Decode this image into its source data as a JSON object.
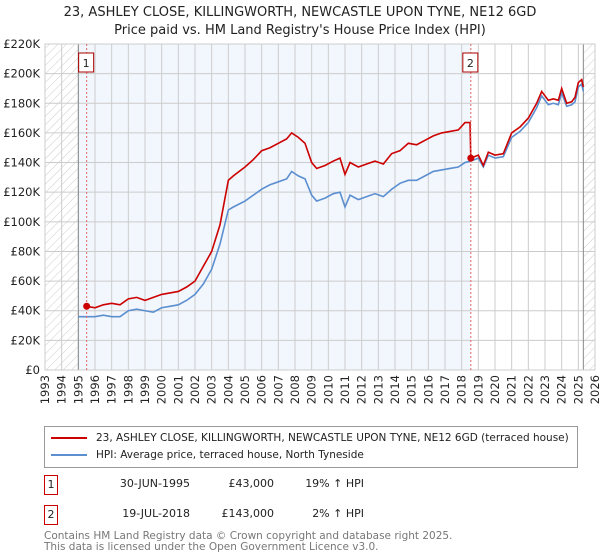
{
  "title": [
    "23, ASHLEY CLOSE, KILLINGWORTH, NEWCASTLE UPON TYNE, NE12 6GD",
    "Price paid vs. HM Land Registry's House Price Index (HPI)"
  ],
  "chart_data": {
    "type": "line",
    "xlim": [
      1993,
      2026
    ],
    "ylim": [
      0,
      220000
    ],
    "yticks": [
      0,
      20000,
      40000,
      60000,
      80000,
      100000,
      120000,
      140000,
      160000,
      180000,
      200000,
      220000
    ],
    "ytick_labels": [
      "£0",
      "£20K",
      "£40K",
      "£60K",
      "£80K",
      "£100K",
      "£120K",
      "£140K",
      "£160K",
      "£180K",
      "£200K",
      "£220K"
    ],
    "xtick_labels": [
      "1993",
      "1994",
      "1995",
      "1996",
      "1997",
      "1998",
      "1999",
      "2000",
      "2001",
      "2002",
      "2003",
      "2004",
      "2005",
      "2006",
      "2007",
      "2008",
      "2009",
      "2010",
      "2011",
      "2012",
      "2013",
      "2014",
      "2015",
      "2016",
      "2017",
      "2018",
      "2019",
      "2020",
      "2021",
      "2022",
      "2023",
      "2024",
      "2025",
      "2026"
    ],
    "grid": true,
    "shaded_period": [
      1995,
      2018.55
    ],
    "hatched_before": 1995,
    "hatched_after": 2025.3,
    "series": [
      {
        "name": "23, ASHLEY CLOSE, KILLINGWORTH, NEWCASTLE UPON TYNE, NE12 6GD (terraced house)",
        "color": "#cc0000",
        "x": [
          1995.5,
          1996,
          1996.5,
          1997,
          1997.5,
          1998,
          1998.5,
          1999,
          1999.5,
          2000,
          2000.5,
          2001,
          2001.5,
          2002,
          2002.5,
          2003,
          2003.5,
          2004,
          2004.3,
          2005,
          2005.5,
          2006,
          2006.5,
          2007,
          2007.5,
          2007.8,
          2008.2,
          2008.6,
          2009,
          2009.3,
          2009.8,
          2010.3,
          2010.7,
          2011,
          2011.3,
          2011.8,
          2012.3,
          2012.8,
          2013.3,
          2013.8,
          2014.3,
          2014.8,
          2015.3,
          2015.8,
          2016.3,
          2016.8,
          2017.3,
          2017.8,
          2018.2,
          2018.5,
          2018.55,
          2019,
          2019.3,
          2019.6,
          2020,
          2020.5,
          2021,
          2021.5,
          2022,
          2022.5,
          2022.8,
          2023.2,
          2023.5,
          2023.8,
          2024,
          2024.3,
          2024.6,
          2024.8,
          2025,
          2025.2,
          2025.3
        ],
        "y": [
          43000,
          42000,
          44000,
          45000,
          44000,
          48000,
          49000,
          47000,
          49000,
          51000,
          52000,
          53000,
          56000,
          60000,
          70000,
          80000,
          98000,
          128000,
          131000,
          137000,
          142000,
          148000,
          150000,
          153000,
          156000,
          160000,
          157000,
          153000,
          140000,
          136000,
          138000,
          141000,
          143000,
          132000,
          140000,
          137000,
          139000,
          141000,
          139000,
          146000,
          148000,
          153000,
          152000,
          155000,
          158000,
          160000,
          161000,
          162000,
          167000,
          167000,
          143000,
          145000,
          138000,
          147000,
          145000,
          146000,
          160000,
          164000,
          170000,
          180000,
          188000,
          182000,
          183000,
          182000,
          190000,
          180000,
          181000,
          184000,
          194000,
          196000,
          191000
        ]
      },
      {
        "name": "HPI: Average price, terraced house, North Tyneside",
        "color": "#5b8fd0",
        "x": [
          1995,
          1995.5,
          1996,
          1996.5,
          1997,
          1997.5,
          1998,
          1998.5,
          1999,
          1999.5,
          2000,
          2000.5,
          2001,
          2001.5,
          2002,
          2002.5,
          2003,
          2003.5,
          2004,
          2004.3,
          2005,
          2005.5,
          2006,
          2006.5,
          2007,
          2007.5,
          2007.8,
          2008.2,
          2008.6,
          2009,
          2009.3,
          2009.8,
          2010.3,
          2010.7,
          2011,
          2011.3,
          2011.8,
          2012.3,
          2012.8,
          2013.3,
          2013.8,
          2014.3,
          2014.8,
          2015.3,
          2015.8,
          2016.3,
          2016.8,
          2017.3,
          2017.8,
          2018.2,
          2018.55,
          2019,
          2019.3,
          2019.6,
          2020,
          2020.5,
          2021,
          2021.5,
          2022,
          2022.5,
          2022.8,
          2023.2,
          2023.5,
          2023.8,
          2024,
          2024.3,
          2024.6,
          2024.8,
          2025,
          2025.2,
          2025.3
        ],
        "y": [
          36000,
          36000,
          36000,
          37000,
          36000,
          36000,
          40000,
          41000,
          40000,
          39000,
          42000,
          43000,
          44000,
          47000,
          51000,
          58000,
          68000,
          85000,
          108000,
          110000,
          114000,
          118000,
          122000,
          125000,
          127000,
          129000,
          134000,
          131000,
          129000,
          118000,
          114000,
          116000,
          119000,
          120000,
          110000,
          118000,
          115000,
          117000,
          119000,
          117000,
          122000,
          126000,
          128000,
          128000,
          131000,
          134000,
          135000,
          136000,
          137000,
          140000,
          141000,
          143000,
          137000,
          145000,
          143000,
          144000,
          157000,
          161000,
          167000,
          177000,
          185000,
          179000,
          180000,
          179000,
          187000,
          178000,
          179000,
          181000,
          191000,
          193000,
          188000
        ]
      }
    ],
    "annotations": [
      {
        "label": "1",
        "x": 1995.5,
        "y": 43000
      },
      {
        "label": "2",
        "x": 2018.55,
        "y": 143000
      }
    ]
  },
  "legend": {
    "red": "23, ASHLEY CLOSE, KILLINGWORTH, NEWCASTLE UPON TYNE, NE12 6GD (terraced house)",
    "blue": "HPI: Average price, terraced house, North Tyneside"
  },
  "transactions": [
    {
      "num": "1",
      "date": "30-JUN-1995",
      "price": "£43,000",
      "hpi": "19% ↑ HPI"
    },
    {
      "num": "2",
      "date": "19-JUL-2018",
      "price": "£143,000",
      "hpi": "2% ↑ HPI"
    }
  ],
  "footer": [
    "Contains HM Land Registry data © Crown copyright and database right 2025.",
    "This data is licensed under the Open Government Licence v3.0."
  ]
}
